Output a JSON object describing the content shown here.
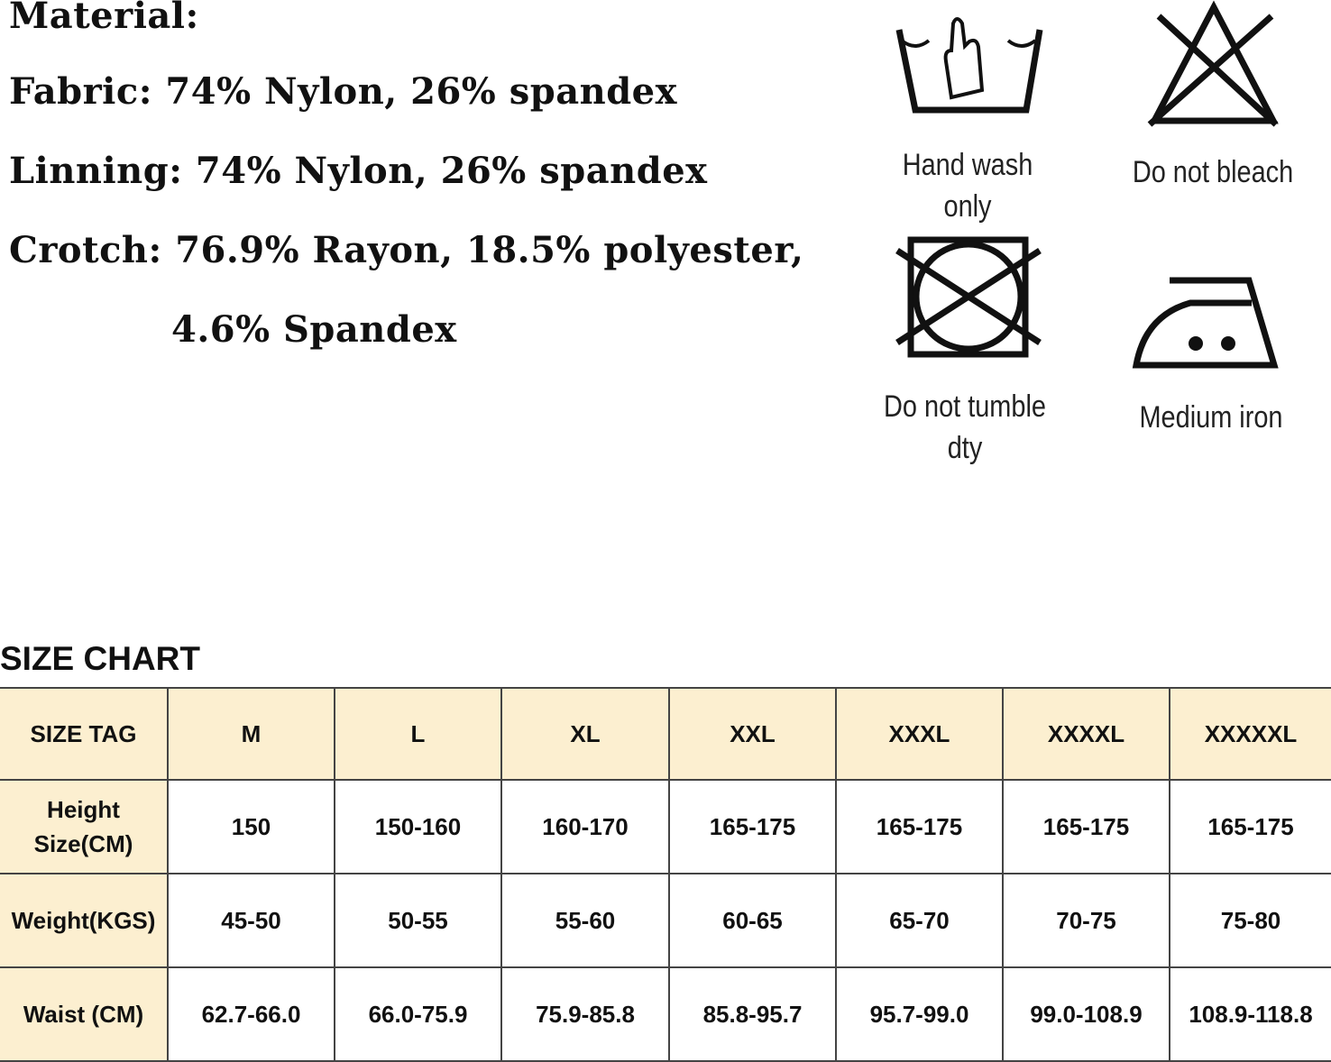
{
  "material": {
    "title": "Material:",
    "lines": [
      "Fabric: 74% Nylon, 26% spandex",
      "Linning: 74% Nylon, 26% spandex",
      "Crotch: 76.9% Rayon, 18.5% polyester,",
      "4.6% Spandex"
    ]
  },
  "care": {
    "labels": [
      "Hand wash only",
      "Do not bleach",
      "Do not tumble dty",
      "Medium iron"
    ]
  },
  "size_chart": {
    "title": "SIZE CHART",
    "header": [
      "SIZE TAG",
      "M",
      "L",
      "XL",
      "XXL",
      "XXXL",
      "XXXXL",
      "XXXXXL"
    ],
    "rows": [
      [
        "Height Size(CM)",
        "150",
        "150-160",
        "160-170",
        "165-175",
        "165-175",
        "165-175",
        "165-175"
      ],
      [
        "Weight(KGS)",
        "45-50",
        "50-55",
        "55-60",
        "60-65",
        "65-70",
        "70-75",
        "75-80"
      ],
      [
        "Waist (CM)",
        "62.7-66.0",
        "66.0-75.9",
        "75.9-85.8",
        "85.8-95.7",
        "95.7-99.0",
        "99.0-108.9",
        "108.9-118.8"
      ]
    ]
  }
}
